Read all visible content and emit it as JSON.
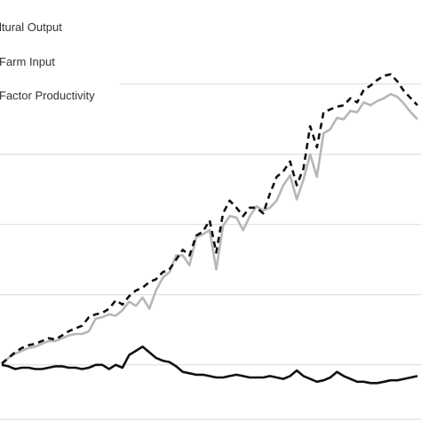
{
  "chart_data": {
    "type": "line",
    "title": "",
    "xlabel": "",
    "ylabel": "",
    "x": [
      1,
      2,
      3,
      4,
      5,
      6,
      7,
      8,
      9,
      10,
      11,
      12,
      13,
      14,
      15,
      16,
      17,
      18,
      19,
      20,
      21,
      22,
      23,
      24,
      25,
      26,
      27,
      28,
      29,
      30,
      31,
      32,
      33,
      34,
      35,
      36,
      37,
      38,
      39,
      40,
      41,
      42,
      43,
      44,
      45,
      46,
      47,
      48,
      49,
      50,
      51,
      52,
      53,
      54,
      55,
      56,
      57,
      58,
      59,
      60,
      61,
      62,
      63
    ],
    "ylim": [
      -40,
      260
    ],
    "grid": true,
    "legend_position": "top-left",
    "series": [
      {
        "name": "ltural Output",
        "style": "dashed",
        "color": "#111111",
        "values": [
          1,
          5,
          9,
          12,
          14,
          15,
          17,
          19,
          18,
          21,
          24,
          26,
          28,
          34,
          36,
          37,
          40,
          46,
          43,
          49,
          53,
          55,
          59,
          61,
          66,
          68,
          75,
          82,
          78,
          92,
          95,
          103,
          80,
          108,
          117,
          112,
          106,
          112,
          112,
          108,
          122,
          134,
          138,
          145,
          128,
          140,
          170,
          155,
          180,
          182,
          184,
          185,
          190,
          187,
          196,
          199,
          203,
          206,
          207,
          202,
          195,
          190,
          185
        ],
        "legend_label": "ltural Output",
        "legend_text": "ltural Output"
      },
      {
        "name": "Farm Input",
        "style": "solid",
        "color": "#111111",
        "values": [
          0,
          -1,
          -3,
          -2,
          -2,
          -3,
          -3,
          -2,
          -1,
          -1,
          -2,
          -2,
          -3,
          -2,
          0,
          0,
          -3,
          0,
          -2,
          7,
          10,
          13,
          9,
          5,
          3,
          2,
          -1,
          -5,
          -6,
          -7,
          -7,
          -8,
          -9,
          -9,
          -8,
          -7,
          -8,
          -9,
          -9,
          -9,
          -8,
          -9,
          -10,
          -8,
          -4,
          -8,
          -10,
          -12,
          -11,
          -9,
          -5,
          -8,
          -10,
          -12,
          -12,
          -13,
          -13,
          -12,
          -11,
          -11,
          -10,
          -9,
          -8
        ],
        "legend_label": "Farm Input",
        "legend_text": "Farm Input"
      },
      {
        "name": "Factor Productivity",
        "style": "solid",
        "color": "#b7b7b7",
        "values": [
          0,
          5,
          8,
          10,
          12,
          13,
          15,
          17,
          17,
          19,
          21,
          22,
          22,
          24,
          33,
          34,
          36,
          35,
          39,
          45,
          42,
          48,
          40,
          53,
          62,
          66,
          78,
          78,
          71,
          91,
          93,
          96,
          68,
          99,
          106,
          105,
          96,
          106,
          113,
          110,
          112,
          117,
          128,
          135,
          118,
          132,
          150,
          134,
          165,
          168,
          176,
          175,
          181,
          180,
          187,
          185,
          188,
          190,
          193,
          191,
          186,
          180,
          175
        ],
        "legend_label": "Factor Productivity",
        "legend_text": "Factor Productivity"
      }
    ]
  },
  "legend": {
    "items": [
      {
        "label": "ltural Output"
      },
      {
        "label": "Farm Input"
      },
      {
        "label": "Factor Productivity"
      }
    ]
  }
}
